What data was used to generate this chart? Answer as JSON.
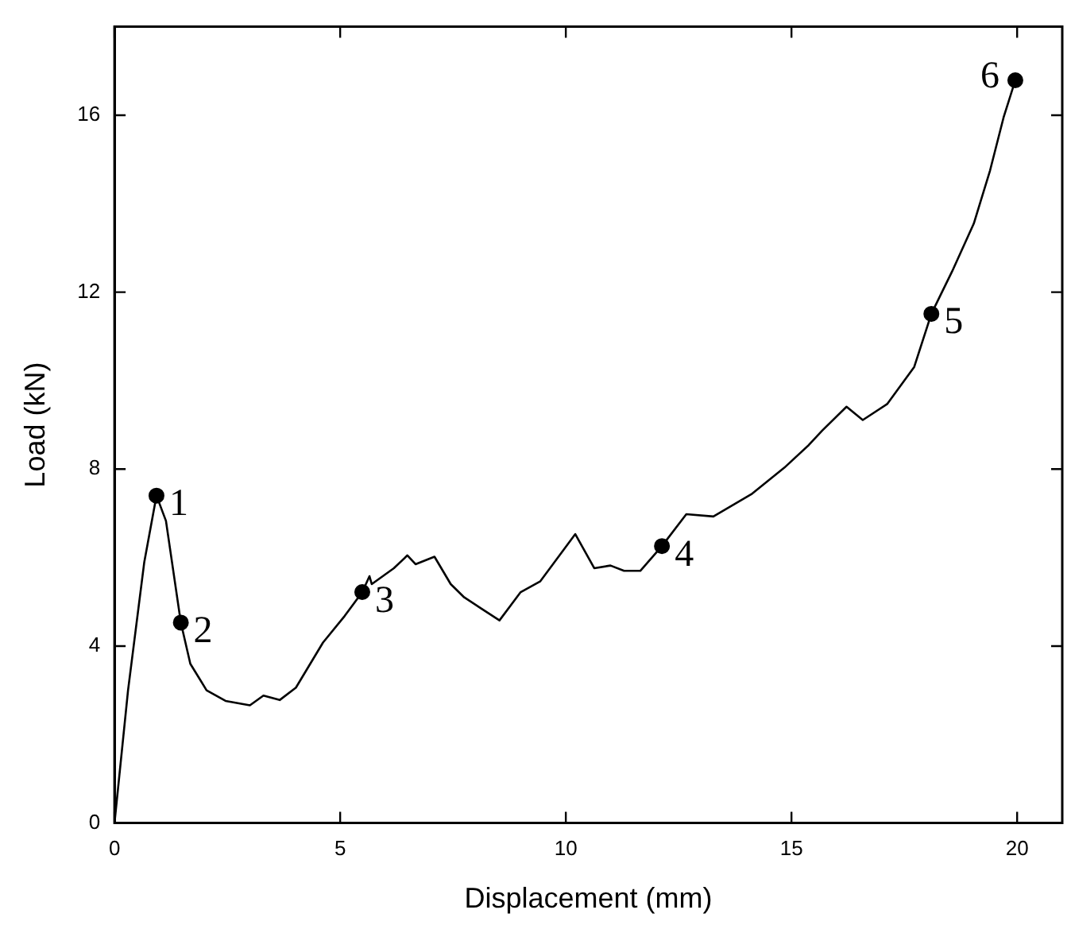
{
  "chart_data": {
    "type": "line",
    "xlabel": "Displacement (mm)",
    "ylabel": "Load (kN)",
    "xlim": [
      0,
      21
    ],
    "xticks": [
      0,
      5,
      10,
      15,
      20
    ],
    "ylim": [
      0,
      18
    ],
    "yticks": [
      0,
      4,
      8,
      12,
      16
    ],
    "grid": false,
    "legend": false,
    "series": [
      {
        "color": "#000000",
        "x": [
          0,
          0.3,
          0.66,
          0.93,
          1.14,
          1.47,
          1.68,
          2.04,
          2.46,
          3.0,
          3.3,
          3.66,
          4.02,
          4.62,
          5.1,
          5.49,
          5.65,
          5.7,
          6.19,
          6.49,
          6.67,
          7.09,
          7.45,
          7.75,
          8.11,
          8.53,
          9.0,
          9.43,
          9.91,
          10.21,
          10.63,
          10.99,
          11.29,
          11.65,
          12.13,
          12.67,
          13.27,
          14.11,
          14.84,
          15.38,
          15.68,
          16.22,
          16.58,
          17.12,
          17.72,
          18.1,
          18.56,
          19.04,
          19.4,
          19.7,
          19.96
        ],
        "values": [
          0,
          3.0,
          5.9,
          7.4,
          6.83,
          4.53,
          3.6,
          3.0,
          2.76,
          2.66,
          2.88,
          2.78,
          3.06,
          4.08,
          4.68,
          5.22,
          5.58,
          5.4,
          5.76,
          6.05,
          5.85,
          6.02,
          5.4,
          5.1,
          4.86,
          4.58,
          5.22,
          5.46,
          6.12,
          6.53,
          5.76,
          5.82,
          5.7,
          5.7,
          6.26,
          6.98,
          6.93,
          7.43,
          8.03,
          8.54,
          8.87,
          9.41,
          9.11,
          9.47,
          10.31,
          11.51,
          12.47,
          13.55,
          14.75,
          15.95,
          16.79
        ]
      },
      {
        "type": "scatter",
        "color": "#000000",
        "marker": "circle",
        "x": [
          0.93,
          1.47,
          5.49,
          12.13,
          18.1,
          19.96
        ],
        "values": [
          7.4,
          4.53,
          5.22,
          6.26,
          11.51,
          16.79
        ]
      }
    ],
    "annotations": [
      {
        "text": "1",
        "x": 0.93,
        "y": 7.4
      },
      {
        "text": "2",
        "x": 1.47,
        "y": 4.53
      },
      {
        "text": "3",
        "x": 5.49,
        "y": 5.22
      },
      {
        "text": "4",
        "x": 12.13,
        "y": 6.26
      },
      {
        "text": "5",
        "x": 18.1,
        "y": 11.51
      },
      {
        "text": "6",
        "x": 19.96,
        "y": 16.79
      }
    ]
  }
}
